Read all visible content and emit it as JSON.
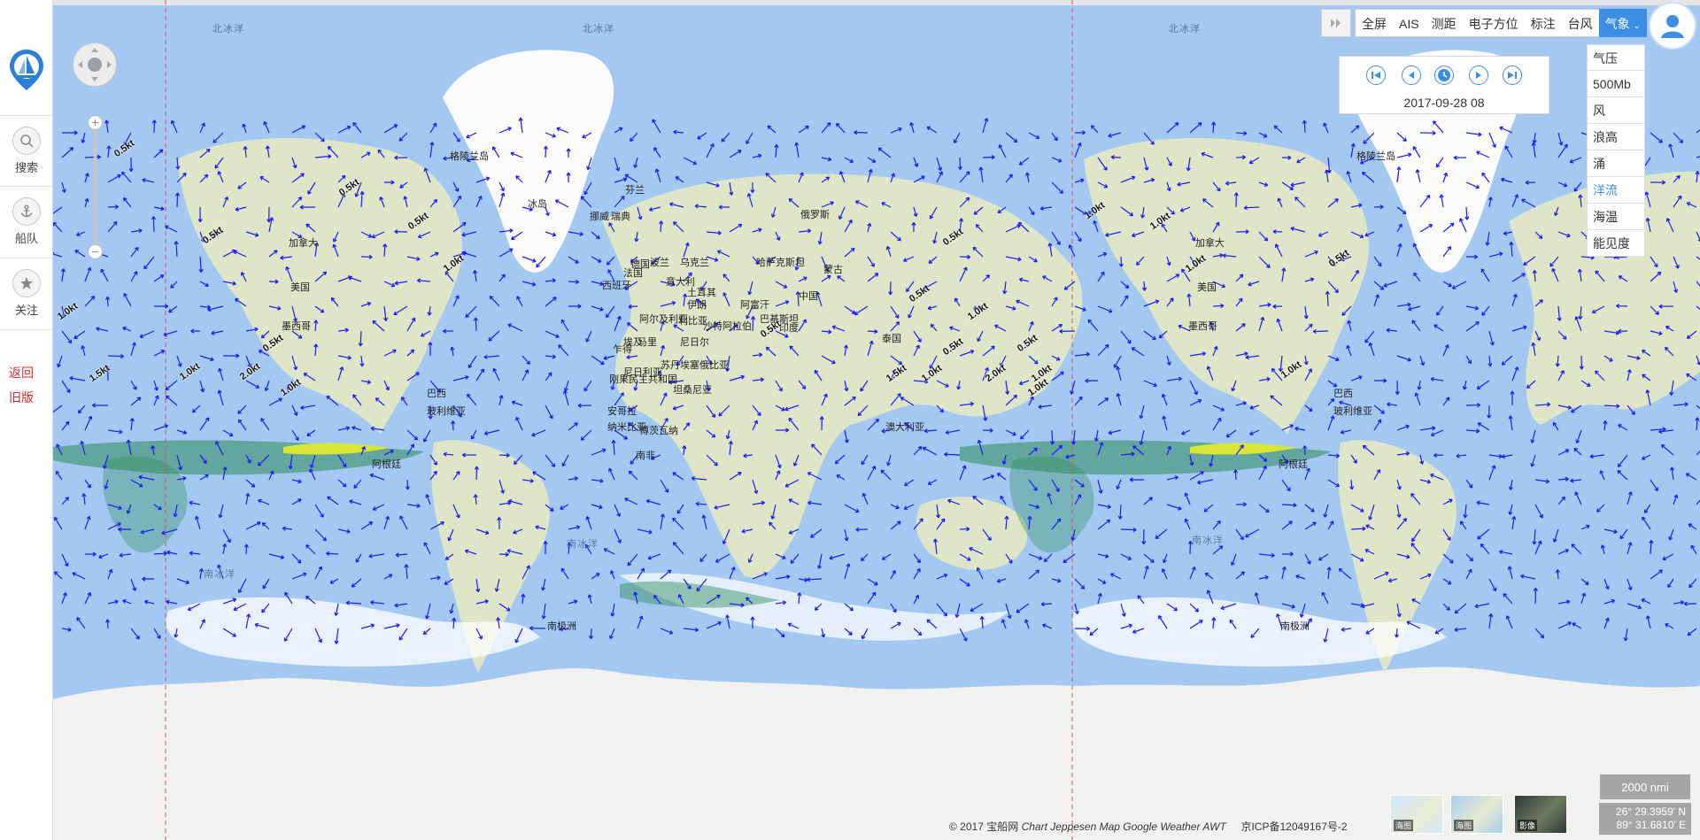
{
  "sidebar": {
    "items": [
      {
        "label": "搜索",
        "icon": "search-icon"
      },
      {
        "label": "船队",
        "icon": "anchor-icon"
      },
      {
        "label": "关注",
        "icon": "star-icon"
      }
    ],
    "legacy_line1": "返回",
    "legacy_line2": "旧版"
  },
  "toolbar": {
    "buttons": [
      "全屏",
      "AIS",
      "测距",
      "电子方位",
      "标注",
      "台风",
      "气象"
    ],
    "active": "气象"
  },
  "weather_menu": {
    "items": [
      "气压",
      "500Mb",
      "风",
      "浪高",
      "涌",
      "洋流",
      "海温",
      "能见度"
    ],
    "selected": "洋流"
  },
  "player": {
    "date": "2017-09-28 08"
  },
  "map": {
    "labels": [
      {
        "text": "北冰洋"
      },
      {
        "text": "北冰洋"
      },
      {
        "text": "北冰洋"
      },
      {
        "text": "格陵兰岛"
      },
      {
        "text": "格陵兰岛"
      },
      {
        "text": "加拿大"
      },
      {
        "text": "加拿大"
      },
      {
        "text": "美国"
      },
      {
        "text": "美国"
      },
      {
        "text": "墨西哥"
      },
      {
        "text": "墨西哥"
      },
      {
        "text": "巴西"
      },
      {
        "text": "巴西"
      },
      {
        "text": "玻利维亚"
      },
      {
        "text": "玻利维亚"
      },
      {
        "text": "阿根廷"
      },
      {
        "text": "阿根廷"
      },
      {
        "text": "俄罗斯"
      },
      {
        "text": "中国"
      },
      {
        "text": "蒙古"
      },
      {
        "text": "印度"
      },
      {
        "text": "哈萨克斯坦"
      },
      {
        "text": "伊朗"
      },
      {
        "text": "阿富汗"
      },
      {
        "text": "沙特阿拉伯"
      },
      {
        "text": "埃及"
      },
      {
        "text": "利比亚"
      },
      {
        "text": "阿尔及利亚"
      },
      {
        "text": "马里"
      },
      {
        "text": "尼日尔"
      },
      {
        "text": "乍得"
      },
      {
        "text": "苏丹"
      },
      {
        "text": "尼日利亚"
      },
      {
        "text": "埃塞俄比亚"
      },
      {
        "text": "刚果民主共和国"
      },
      {
        "text": "坦桑尼亚"
      },
      {
        "text": "安哥拉"
      },
      {
        "text": "纳米比亚"
      },
      {
        "text": "博茨瓦纳"
      },
      {
        "text": "南非"
      },
      {
        "text": "澳大利亚"
      },
      {
        "text": "泰国"
      },
      {
        "text": "芬兰"
      },
      {
        "text": "瑞典"
      },
      {
        "text": "波兰"
      },
      {
        "text": "德国"
      },
      {
        "text": "法国"
      },
      {
        "text": "西班牙"
      },
      {
        "text": "乌克兰"
      },
      {
        "text": "土耳其"
      },
      {
        "text": "冰岛"
      },
      {
        "text": "挪威"
      },
      {
        "text": "意大利"
      },
      {
        "text": "巴基斯坦"
      },
      {
        "text": "南极洲"
      },
      {
        "text": "南极洲"
      },
      {
        "text": "南冰洋"
      },
      {
        "text": "南冰洋"
      },
      {
        "text": "南冰洋"
      }
    ],
    "current_labels": [
      "0.5kt",
      "0.5kt",
      "0.5kt",
      "0.5kt",
      "0.5kt",
      "1.0kt",
      "1.0kt",
      "1.5kt",
      "2.0kt",
      "1.0kt",
      "1.0kt",
      "0.5kt",
      "1.0kt",
      "1.0kt",
      "0.5kt",
      "1.0kt",
      "0.5kt",
      "1.0kt",
      "0.5kt",
      "1.0kt",
      "1.5kt",
      "2.0kt",
      "1.0kt",
      "1.0kt",
      "1.0kt",
      "0.5kt",
      "0.5kt"
    ]
  },
  "footer": {
    "copyright_prefix": "© 2017 宝船网",
    "copyright_mid": "Chart Jeppesen Map Google Weather AWT",
    "icp": "京ICP备12049167号-2",
    "thumbs": [
      "海图",
      "海图",
      "影像"
    ],
    "scale": "2000 nmi",
    "lat": "26° 29.3959′ N",
    "lon": "89° 31.6810′ E"
  },
  "colors": {
    "ocean": "#a3c8f2",
    "land": "#dfe6c8",
    "ice": "#f3f3f1",
    "arrow": "#1c1cf5",
    "accent": "#3c8de6",
    "legacy": "#e0292b"
  }
}
